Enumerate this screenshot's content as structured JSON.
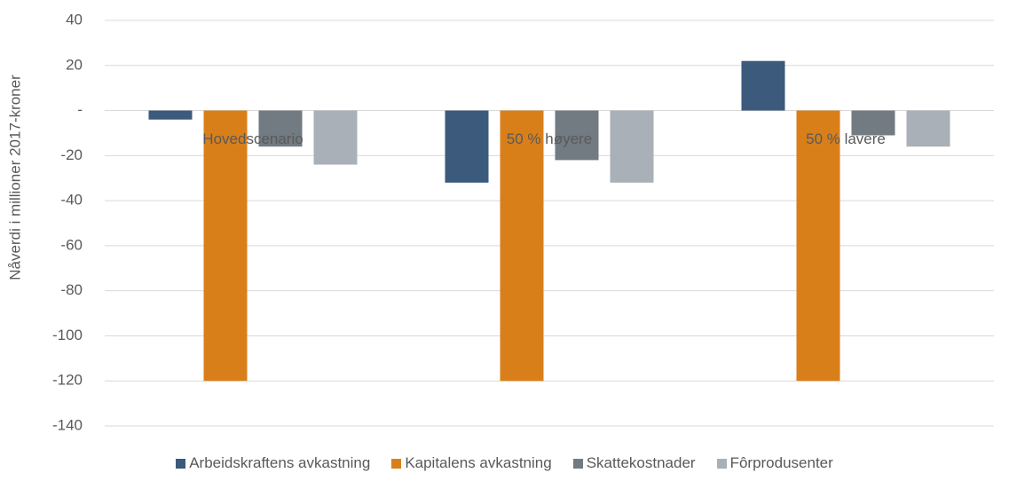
{
  "chart_data": {
    "type": "bar",
    "y_label": "Nåverdi i millioner 2017-kroner",
    "categories": [
      "Hovedscenario",
      "50 % høyere",
      "50 % lavere"
    ],
    "series": [
      {
        "name": "Arbeidskraftens avkastning",
        "color": "#3b5a7c",
        "values": [
          -4,
          -32,
          22
        ]
      },
      {
        "name": "Kapitalens avkastning",
        "color": "#d97f1a",
        "values": [
          -120,
          -120,
          -120
        ]
      },
      {
        "name": "Skattekostnader",
        "color": "#727a82",
        "values": [
          -16,
          -22,
          -11
        ]
      },
      {
        "name": "Fôrprodusenter",
        "color": "#a9b0b7",
        "values": [
          -24,
          -32,
          -16
        ]
      }
    ],
    "ylim": [
      -140,
      40
    ],
    "yticks": [
      -140,
      -120,
      -100,
      -80,
      -60,
      -40,
      -20,
      {
        "value": 0,
        "label": "-"
      },
      20,
      40
    ],
    "grid": true,
    "legend": "bottom"
  }
}
